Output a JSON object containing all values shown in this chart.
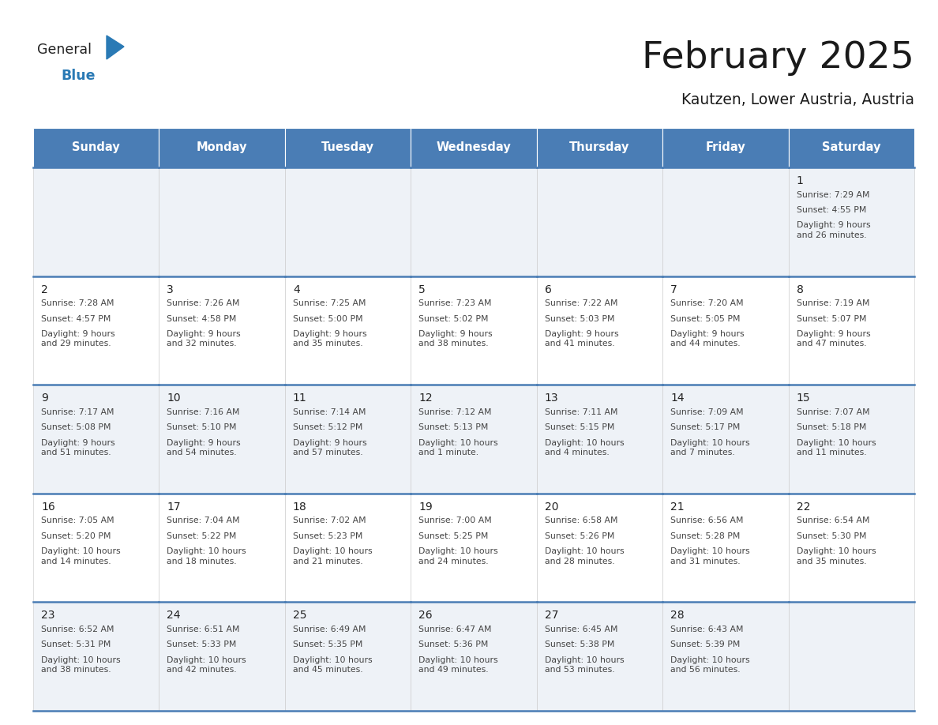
{
  "title": "February 2025",
  "subtitle": "Kautzen, Lower Austria, Austria",
  "days_of_week": [
    "Sunday",
    "Monday",
    "Tuesday",
    "Wednesday",
    "Thursday",
    "Friday",
    "Saturday"
  ],
  "header_bg": "#4a7db5",
  "header_text": "#ffffff",
  "cell_bg_odd": "#eef2f7",
  "cell_bg_even": "#ffffff",
  "cell_text": "#333333",
  "divider_color": "#4a7db5",
  "title_color": "#1a1a1a",
  "subtitle_color": "#1a1a1a",
  "logo_general_color": "#1a1a1a",
  "logo_blue_color": "#2a7ab5",
  "calendar_data": [
    [
      {
        "day": null
      },
      {
        "day": null
      },
      {
        "day": null
      },
      {
        "day": null
      },
      {
        "day": null
      },
      {
        "day": null
      },
      {
        "day": 1,
        "sunrise": "7:29 AM",
        "sunset": "4:55 PM",
        "daylight": "9 hours\nand 26 minutes."
      }
    ],
    [
      {
        "day": 2,
        "sunrise": "7:28 AM",
        "sunset": "4:57 PM",
        "daylight": "9 hours\nand 29 minutes."
      },
      {
        "day": 3,
        "sunrise": "7:26 AM",
        "sunset": "4:58 PM",
        "daylight": "9 hours\nand 32 minutes."
      },
      {
        "day": 4,
        "sunrise": "7:25 AM",
        "sunset": "5:00 PM",
        "daylight": "9 hours\nand 35 minutes."
      },
      {
        "day": 5,
        "sunrise": "7:23 AM",
        "sunset": "5:02 PM",
        "daylight": "9 hours\nand 38 minutes."
      },
      {
        "day": 6,
        "sunrise": "7:22 AM",
        "sunset": "5:03 PM",
        "daylight": "9 hours\nand 41 minutes."
      },
      {
        "day": 7,
        "sunrise": "7:20 AM",
        "sunset": "5:05 PM",
        "daylight": "9 hours\nand 44 minutes."
      },
      {
        "day": 8,
        "sunrise": "7:19 AM",
        "sunset": "5:07 PM",
        "daylight": "9 hours\nand 47 minutes."
      }
    ],
    [
      {
        "day": 9,
        "sunrise": "7:17 AM",
        "sunset": "5:08 PM",
        "daylight": "9 hours\nand 51 minutes."
      },
      {
        "day": 10,
        "sunrise": "7:16 AM",
        "sunset": "5:10 PM",
        "daylight": "9 hours\nand 54 minutes."
      },
      {
        "day": 11,
        "sunrise": "7:14 AM",
        "sunset": "5:12 PM",
        "daylight": "9 hours\nand 57 minutes."
      },
      {
        "day": 12,
        "sunrise": "7:12 AM",
        "sunset": "5:13 PM",
        "daylight": "10 hours\nand 1 minute."
      },
      {
        "day": 13,
        "sunrise": "7:11 AM",
        "sunset": "5:15 PM",
        "daylight": "10 hours\nand 4 minutes."
      },
      {
        "day": 14,
        "sunrise": "7:09 AM",
        "sunset": "5:17 PM",
        "daylight": "10 hours\nand 7 minutes."
      },
      {
        "day": 15,
        "sunrise": "7:07 AM",
        "sunset": "5:18 PM",
        "daylight": "10 hours\nand 11 minutes."
      }
    ],
    [
      {
        "day": 16,
        "sunrise": "7:05 AM",
        "sunset": "5:20 PM",
        "daylight": "10 hours\nand 14 minutes."
      },
      {
        "day": 17,
        "sunrise": "7:04 AM",
        "sunset": "5:22 PM",
        "daylight": "10 hours\nand 18 minutes."
      },
      {
        "day": 18,
        "sunrise": "7:02 AM",
        "sunset": "5:23 PM",
        "daylight": "10 hours\nand 21 minutes."
      },
      {
        "day": 19,
        "sunrise": "7:00 AM",
        "sunset": "5:25 PM",
        "daylight": "10 hours\nand 24 minutes."
      },
      {
        "day": 20,
        "sunrise": "6:58 AM",
        "sunset": "5:26 PM",
        "daylight": "10 hours\nand 28 minutes."
      },
      {
        "day": 21,
        "sunrise": "6:56 AM",
        "sunset": "5:28 PM",
        "daylight": "10 hours\nand 31 minutes."
      },
      {
        "day": 22,
        "sunrise": "6:54 AM",
        "sunset": "5:30 PM",
        "daylight": "10 hours\nand 35 minutes."
      }
    ],
    [
      {
        "day": 23,
        "sunrise": "6:52 AM",
        "sunset": "5:31 PM",
        "daylight": "10 hours\nand 38 minutes."
      },
      {
        "day": 24,
        "sunrise": "6:51 AM",
        "sunset": "5:33 PM",
        "daylight": "10 hours\nand 42 minutes."
      },
      {
        "day": 25,
        "sunrise": "6:49 AM",
        "sunset": "5:35 PM",
        "daylight": "10 hours\nand 45 minutes."
      },
      {
        "day": 26,
        "sunrise": "6:47 AM",
        "sunset": "5:36 PM",
        "daylight": "10 hours\nand 49 minutes."
      },
      {
        "day": 27,
        "sunrise": "6:45 AM",
        "sunset": "5:38 PM",
        "daylight": "10 hours\nand 53 minutes."
      },
      {
        "day": 28,
        "sunrise": "6:43 AM",
        "sunset": "5:39 PM",
        "daylight": "10 hours\nand 56 minutes."
      },
      {
        "day": null
      }
    ]
  ]
}
